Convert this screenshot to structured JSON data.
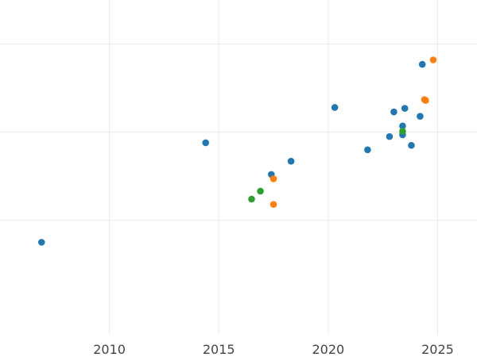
{
  "chart_data": {
    "type": "scatter",
    "title": "",
    "xlabel": "",
    "ylabel": "",
    "xlim": [
      2005.0,
      2026.8
    ],
    "ylim": [
      -1.3,
      2.5
    ],
    "x_ticks": [
      2010,
      2015,
      2020,
      2025
    ],
    "y_gridlines": [
      0,
      1,
      2
    ],
    "grid": true,
    "legend": "none",
    "series": [
      {
        "color": "#1f77b4",
        "points": [
          {
            "x": 2006.9,
            "y": -0.25
          },
          {
            "x": 2014.4,
            "y": 0.88
          },
          {
            "x": 2017.4,
            "y": 0.52
          },
          {
            "x": 2018.3,
            "y": 0.67
          },
          {
            "x": 2020.3,
            "y": 1.28
          },
          {
            "x": 2021.8,
            "y": 0.8
          },
          {
            "x": 2022.8,
            "y": 0.95
          },
          {
            "x": 2023.0,
            "y": 1.23
          },
          {
            "x": 2023.4,
            "y": 1.07
          },
          {
            "x": 2023.4,
            "y": 0.97
          },
          {
            "x": 2023.5,
            "y": 1.27
          },
          {
            "x": 2023.8,
            "y": 0.85
          },
          {
            "x": 2024.2,
            "y": 1.18
          },
          {
            "x": 2024.3,
            "y": 1.77
          }
        ]
      },
      {
        "color": "#ff7f0e",
        "points": [
          {
            "x": 2017.5,
            "y": 0.47
          },
          {
            "x": 2017.5,
            "y": 0.18
          },
          {
            "x": 2024.4,
            "y": 1.37
          },
          {
            "x": 2024.45,
            "y": 1.36
          },
          {
            "x": 2024.8,
            "y": 1.82
          }
        ]
      },
      {
        "color": "#2ca02c",
        "points": [
          {
            "x": 2016.5,
            "y": 0.24
          },
          {
            "x": 2016.9,
            "y": 0.33
          },
          {
            "x": 2023.4,
            "y": 1.01
          }
        ]
      }
    ]
  }
}
